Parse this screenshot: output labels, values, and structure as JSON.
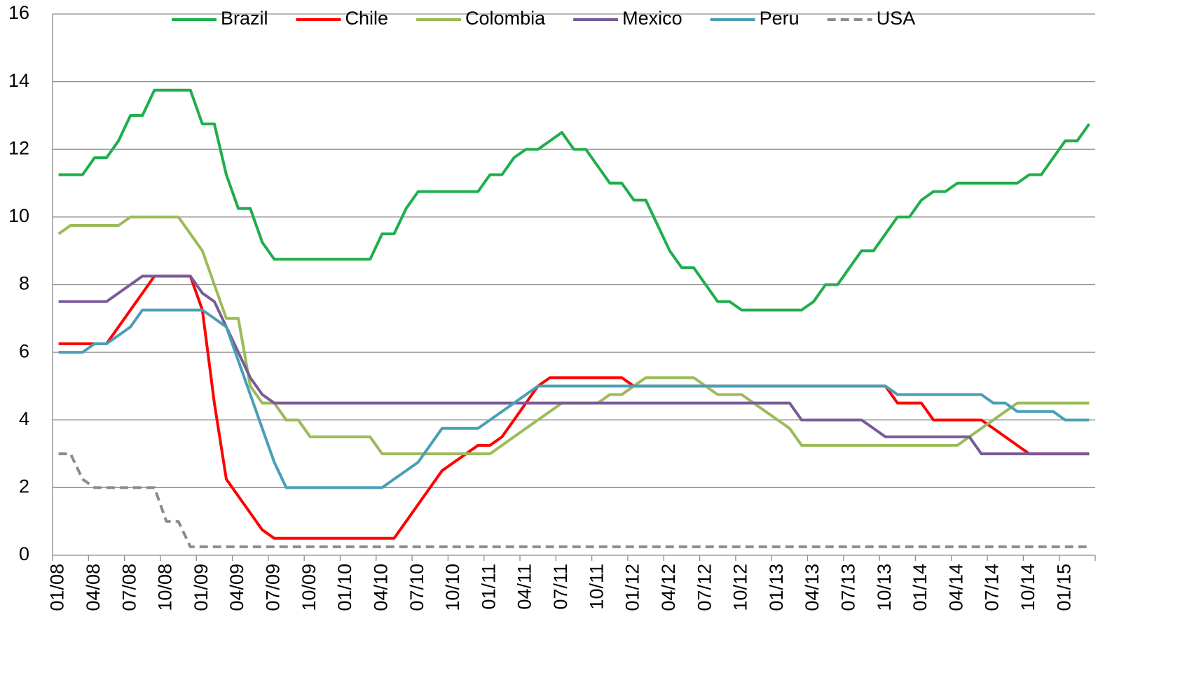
{
  "chart_data": {
    "type": "line",
    "categories": [
      "01/08",
      null,
      null,
      "04/08",
      null,
      null,
      "07/08",
      null,
      null,
      "10/08",
      null,
      null,
      "01/09",
      null,
      null,
      "04/09",
      null,
      null,
      "07/09",
      null,
      null,
      "10/09",
      null,
      null,
      "01/10",
      null,
      null,
      "04/10",
      null,
      null,
      "07/10",
      null,
      null,
      "10/10",
      null,
      null,
      "01/11",
      null,
      null,
      "04/11",
      null,
      null,
      "07/11",
      null,
      null,
      "10/11",
      null,
      null,
      "01/12",
      null,
      null,
      "04/12",
      null,
      null,
      "07/12",
      null,
      null,
      "10/12",
      null,
      null,
      "01/13",
      null,
      null,
      "04/13",
      null,
      null,
      "07/13",
      null,
      null,
      "10/13",
      null,
      null,
      "01/14",
      null,
      null,
      "04/14",
      null,
      null,
      "07/14",
      null,
      null,
      "10/14",
      null,
      null,
      "01/15",
      null,
      null
    ],
    "series": [
      {
        "name": "Brazil",
        "color": "#1fae4b",
        "values": [
          11.25,
          11.25,
          11.25,
          11.75,
          11.75,
          12.25,
          13,
          13,
          13.75,
          13.75,
          13.75,
          13.75,
          12.75,
          12.75,
          11.25,
          10.25,
          10.25,
          9.25,
          8.75,
          8.75,
          8.75,
          8.75,
          8.75,
          8.75,
          8.75,
          8.75,
          8.75,
          9.5,
          9.5,
          10.25,
          10.75,
          10.75,
          10.75,
          10.75,
          10.75,
          10.75,
          11.25,
          11.25,
          11.75,
          12,
          12,
          12.25,
          12.5,
          12,
          12,
          11.5,
          11,
          11,
          10.5,
          10.5,
          9.75,
          9,
          8.5,
          8.5,
          8,
          7.5,
          7.5,
          7.25,
          7.25,
          7.25,
          7.25,
          7.25,
          7.25,
          7.5,
          8,
          8,
          8.5,
          9,
          9,
          9.5,
          10,
          10,
          10.5,
          10.75,
          10.75,
          11,
          11,
          11,
          11,
          11,
          11,
          11.25,
          11.25,
          11.75,
          12.25,
          12.25,
          12.75
        ]
      },
      {
        "name": "Chile",
        "color": "#ff0000",
        "values": [
          6.25,
          6.25,
          6.25,
          6.25,
          6.25,
          6.75,
          7.25,
          7.75,
          8.25,
          8.25,
          8.25,
          8.25,
          7.25,
          4.5,
          2.25,
          1.75,
          1.25,
          0.75,
          0.5,
          0.5,
          0.5,
          0.5,
          0.5,
          0.5,
          0.5,
          0.5,
          0.5,
          0.5,
          0.5,
          1,
          1.5,
          2,
          2.5,
          2.75,
          3,
          3.25,
          3.25,
          3.5,
          4,
          4.5,
          5,
          5.25,
          5.25,
          5.25,
          5.25,
          5.25,
          5.25,
          5.25,
          5,
          5,
          5,
          5,
          5,
          5,
          5,
          5,
          5,
          5,
          5,
          5,
          5,
          5,
          5,
          5,
          5,
          5,
          5,
          5,
          5,
          5,
          4.5,
          4.5,
          4.5,
          4,
          4,
          4,
          4,
          4,
          3.75,
          3.5,
          3.25,
          3,
          3,
          3,
          3,
          3,
          3
        ]
      },
      {
        "name": "Colombia",
        "color": "#9bbb59",
        "values": [
          9.5,
          9.75,
          9.75,
          9.75,
          9.75,
          9.75,
          10,
          10,
          10,
          10,
          10,
          9.5,
          9,
          8,
          7,
          7,
          5,
          4.5,
          4.5,
          4,
          4,
          3.5,
          3.5,
          3.5,
          3.5,
          3.5,
          3.5,
          3,
          3,
          3,
          3,
          3,
          3,
          3,
          3,
          3,
          3,
          3.25,
          3.5,
          3.75,
          4,
          4.25,
          4.5,
          4.5,
          4.5,
          4.5,
          4.75,
          4.75,
          5,
          5.25,
          5.25,
          5.25,
          5.25,
          5.25,
          5,
          4.75,
          4.75,
          4.75,
          4.5,
          4.25,
          4,
          3.75,
          3.25,
          3.25,
          3.25,
          3.25,
          3.25,
          3.25,
          3.25,
          3.25,
          3.25,
          3.25,
          3.25,
          3.25,
          3.25,
          3.25,
          3.5,
          3.75,
          4,
          4.25,
          4.5,
          4.5,
          4.5,
          4.5,
          4.5,
          4.5,
          4.5
        ]
      },
      {
        "name": "Mexico",
        "color": "#7a5a99",
        "values": [
          7.5,
          7.5,
          7.5,
          7.5,
          7.5,
          7.75,
          8,
          8.25,
          8.25,
          8.25,
          8.25,
          8.25,
          7.75,
          7.5,
          6.75,
          6,
          5.25,
          4.75,
          4.5,
          4.5,
          4.5,
          4.5,
          4.5,
          4.5,
          4.5,
          4.5,
          4.5,
          4.5,
          4.5,
          4.5,
          4.5,
          4.5,
          4.5,
          4.5,
          4.5,
          4.5,
          4.5,
          4.5,
          4.5,
          4.5,
          4.5,
          4.5,
          4.5,
          4.5,
          4.5,
          4.5,
          4.5,
          4.5,
          4.5,
          4.5,
          4.5,
          4.5,
          4.5,
          4.5,
          4.5,
          4.5,
          4.5,
          4.5,
          4.5,
          4.5,
          4.5,
          4.5,
          4,
          4,
          4,
          4,
          4,
          4,
          3.75,
          3.5,
          3.5,
          3.5,
          3.5,
          3.5,
          3.5,
          3.5,
          3.5,
          3,
          3,
          3,
          3,
          3,
          3,
          3,
          3,
          3,
          3
        ]
      },
      {
        "name": "Peru",
        "color": "#4a9fb5",
        "values": [
          6,
          6,
          6,
          6.25,
          6.25,
          6.5,
          6.75,
          7.25,
          7.25,
          7.25,
          7.25,
          7.25,
          7.25,
          7,
          6.75,
          5.75,
          4.75,
          3.75,
          2.75,
          2,
          2,
          2,
          2,
          2,
          2,
          2,
          2,
          2,
          2.25,
          2.5,
          2.75,
          3.25,
          3.75,
          3.75,
          3.75,
          3.75,
          4,
          4.25,
          4.5,
          4.75,
          5,
          5,
          5,
          5,
          5,
          5,
          5,
          5,
          5,
          5,
          5,
          5,
          5,
          5,
          5,
          5,
          5,
          5,
          5,
          5,
          5,
          5,
          5,
          5,
          5,
          5,
          5,
          5,
          5,
          5,
          4.75,
          4.75,
          4.75,
          4.75,
          4.75,
          4.75,
          4.75,
          4.75,
          4.5,
          4.5,
          4.25,
          4.25,
          4.25,
          4.25,
          4,
          4,
          4
        ]
      },
      {
        "name": "USA",
        "color": "#8c8c8c",
        "dashed": true,
        "values": [
          3,
          3,
          2.25,
          2,
          2,
          2,
          2,
          2,
          2,
          1,
          1,
          0.25,
          0.25,
          0.25,
          0.25,
          0.25,
          0.25,
          0.25,
          0.25,
          0.25,
          0.25,
          0.25,
          0.25,
          0.25,
          0.25,
          0.25,
          0.25,
          0.25,
          0.25,
          0.25,
          0.25,
          0.25,
          0.25,
          0.25,
          0.25,
          0.25,
          0.25,
          0.25,
          0.25,
          0.25,
          0.25,
          0.25,
          0.25,
          0.25,
          0.25,
          0.25,
          0.25,
          0.25,
          0.25,
          0.25,
          0.25,
          0.25,
          0.25,
          0.25,
          0.25,
          0.25,
          0.25,
          0.25,
          0.25,
          0.25,
          0.25,
          0.25,
          0.25,
          0.25,
          0.25,
          0.25,
          0.25,
          0.25,
          0.25,
          0.25,
          0.25,
          0.25,
          0.25,
          0.25,
          0.25,
          0.25,
          0.25,
          0.25,
          0.25,
          0.25,
          0.25,
          0.25,
          0.25,
          0.25,
          0.25,
          0.25,
          0.25
        ]
      }
    ],
    "ylim": [
      0,
      16
    ],
    "yticks": [
      0,
      2,
      4,
      6,
      8,
      10,
      12,
      14,
      16
    ],
    "grid": true,
    "legend": "top"
  }
}
